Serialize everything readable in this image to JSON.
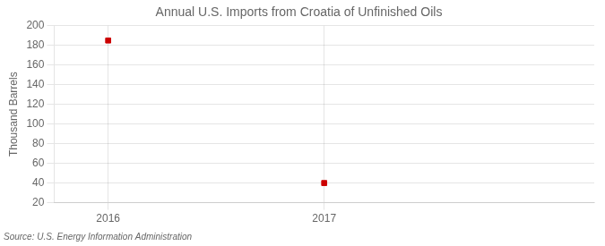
{
  "chart_data": {
    "type": "scatter",
    "title": "Annual U.S. Imports from Croatia of Unfinished Oils",
    "y_label": "Thousand Barrels",
    "annotations": [
      "Source: U.S. Energy Information Administration"
    ],
    "x": [
      2016,
      2017
    ],
    "values": [
      185,
      40
    ],
    "color": "#cc0000",
    "marker": "square",
    "xlim": [
      2015.75,
      2018.25
    ],
    "xticks": [
      2016,
      2017
    ],
    "ylim": [
      20,
      200
    ],
    "yticks": [
      20,
      40,
      60,
      80,
      100,
      120,
      140,
      160,
      180,
      200
    ],
    "grid": true
  }
}
